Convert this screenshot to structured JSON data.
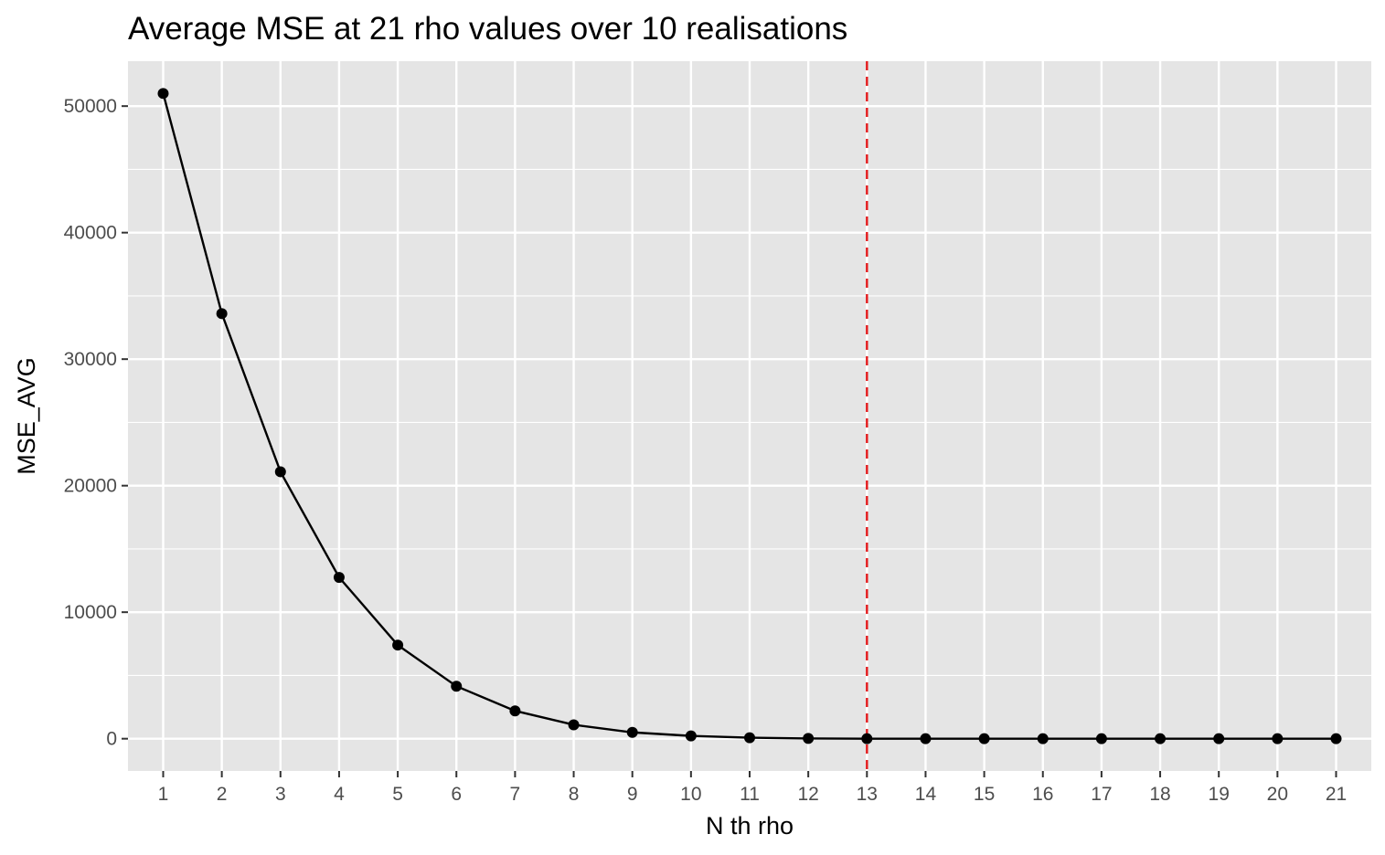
{
  "chart_data": {
    "type": "line",
    "title": "Average MSE at 21 rho values over 10 realisations",
    "xlabel": "N th rho",
    "ylabel": "MSE_AVG",
    "x": [
      1,
      2,
      3,
      4,
      5,
      6,
      7,
      8,
      9,
      10,
      11,
      12,
      13,
      14,
      15,
      16,
      17,
      18,
      19,
      20,
      21
    ],
    "x_tick_labels": [
      "1",
      "2",
      "3",
      "4",
      "5",
      "6",
      "7",
      "8",
      "9",
      "10",
      "11",
      "12",
      "13",
      "14",
      "15",
      "16",
      "17",
      "18",
      "19",
      "20",
      "21"
    ],
    "series": [
      {
        "values": [
          51000,
          33600,
          21100,
          12750,
          7400,
          4150,
          2200,
          1100,
          500,
          220,
          80,
          20,
          0,
          0,
          0,
          0,
          0,
          0,
          0,
          0,
          0
        ],
        "color": "#000000",
        "markers": true
      }
    ],
    "y_ticks": [
      0,
      10000,
      20000,
      30000,
      40000,
      50000
    ],
    "y_tick_labels": [
      "0",
      "10000",
      "20000",
      "30000",
      "40000",
      "50000"
    ],
    "xlim": [
      0.4,
      21.6
    ],
    "ylim": [
      -2550,
      53550
    ],
    "reference_line": {
      "axis": "x",
      "value": 13,
      "color": "#e41a1c",
      "style": "dashed"
    },
    "grid": true,
    "panel_background": "#e5e5e5",
    "grid_color": "#ffffff",
    "legend": "none"
  }
}
